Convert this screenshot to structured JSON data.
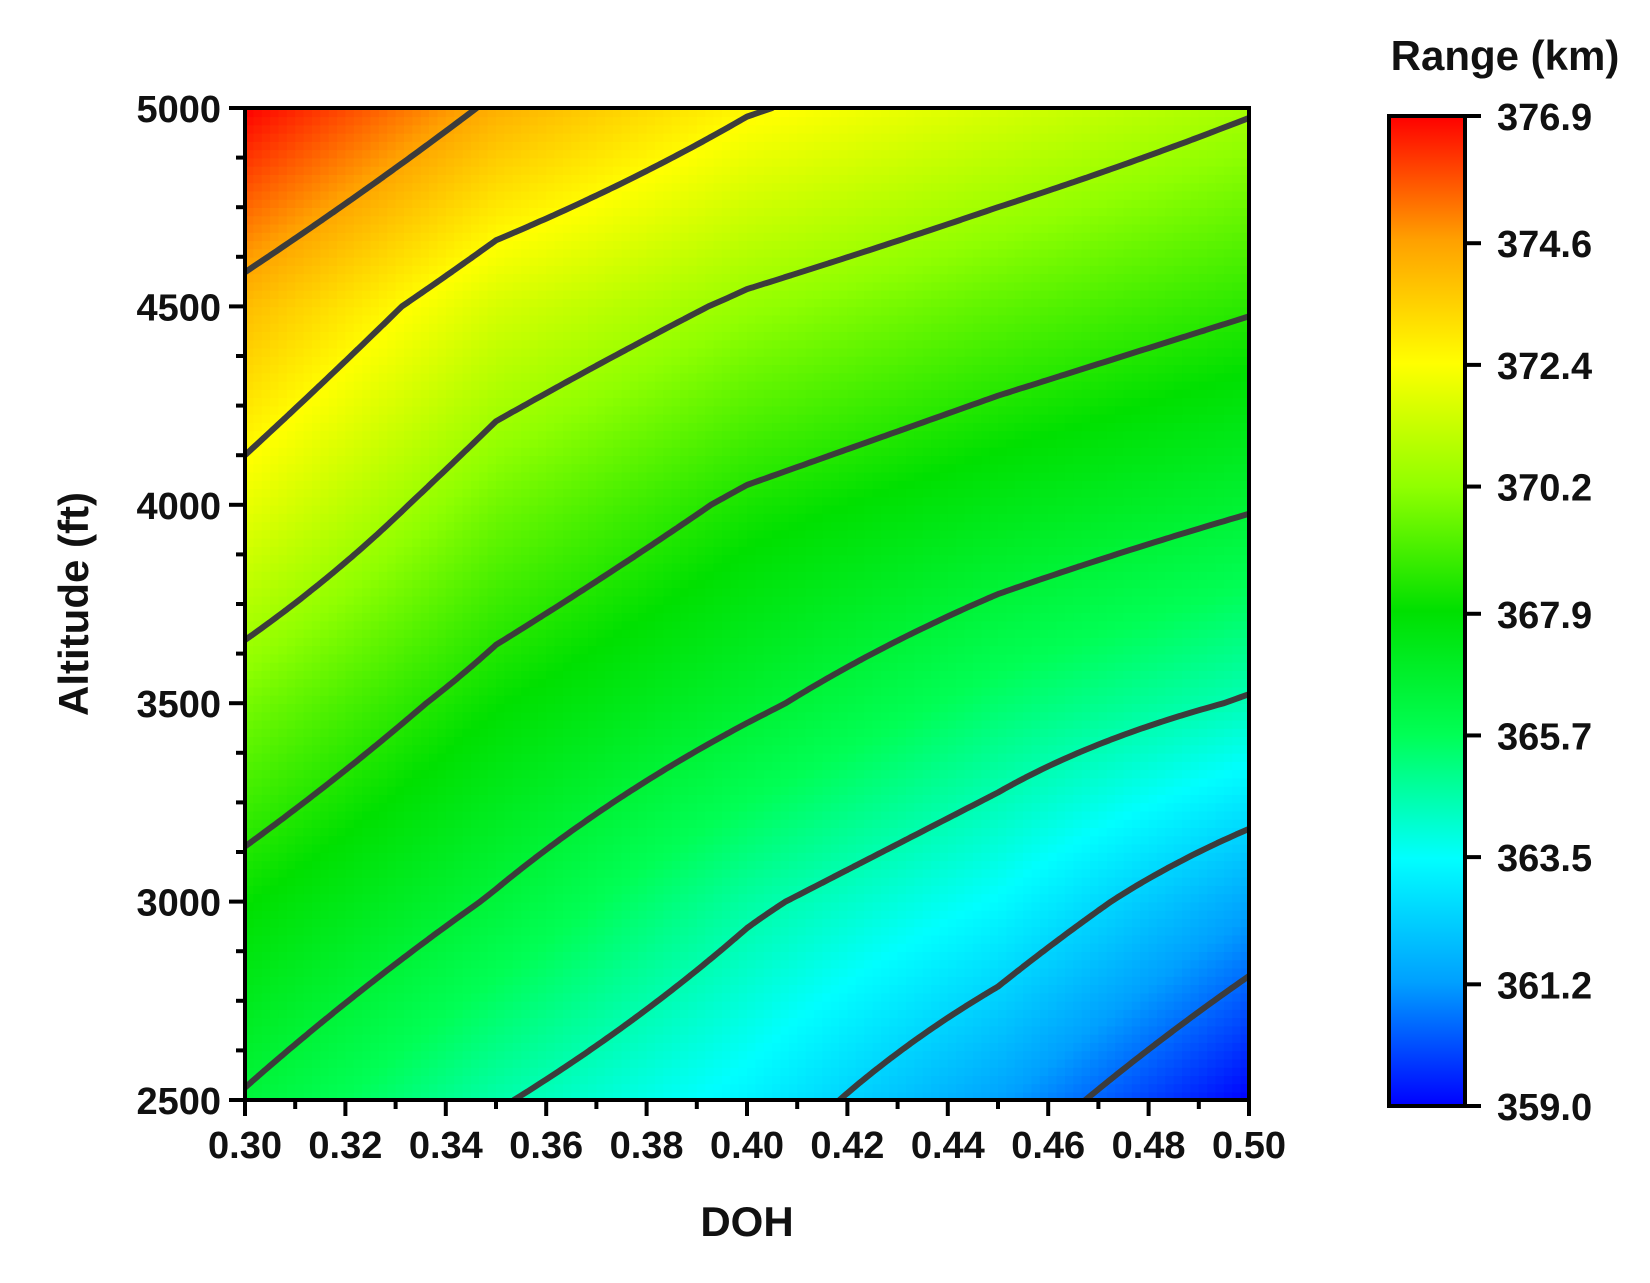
{
  "chart_data": {
    "type": "heatmap",
    "subtype": "filled-contour",
    "title": "",
    "xlabel": "DOH",
    "ylabel": "Altitude (ft)",
    "xlim": [
      0.3,
      0.5
    ],
    "ylim": [
      2500,
      5000
    ],
    "x_ticks": [
      "0.30",
      "0.32",
      "0.34",
      "0.36",
      "0.38",
      "0.40",
      "0.42",
      "0.44",
      "0.46",
      "0.48",
      "0.50"
    ],
    "y_ticks": [
      "2500",
      "3000",
      "3500",
      "4000",
      "4500",
      "5000"
    ],
    "grid": false,
    "x": [
      0.3,
      0.35,
      0.4,
      0.45,
      0.5
    ],
    "y": [
      2500,
      3000,
      3500,
      4000,
      4500,
      5000
    ],
    "z": [
      [
        366.4,
        364.6,
        363.2,
        361.3,
        359.0
      ],
      [
        368.0,
        366.4,
        364.7,
        363.4,
        361.4
      ],
      [
        369.8,
        368.0,
        366.7,
        365.4,
        364.4
      ],
      [
        372.0,
        369.7,
        368.3,
        367.4,
        366.6
      ],
      [
        374.0,
        371.6,
        370.3,
        369.4,
        368.6
      ],
      [
        376.9,
        374.3,
        372.6,
        371.6,
        370.6
      ]
    ],
    "contour_levels": [
      360.5,
      362.5,
      364.5,
      366.5,
      368.5,
      370.5,
      372.5,
      374.5
    ],
    "colorbar": {
      "title": "Range (km)",
      "min": 359.0,
      "max": 376.9,
      "ticks": [
        "376.9",
        "374.6",
        "372.4",
        "370.2",
        "367.9",
        "365.7",
        "363.5",
        "361.2",
        "359.0"
      ]
    },
    "colors": {
      "contour_line": "#3c3c3c",
      "frame": "#000000",
      "colormap": [
        "#0000ff",
        "#00a0ff",
        "#00ffff",
        "#00ff55",
        "#00e000",
        "#90ff00",
        "#ffff00",
        "#ffa000",
        "#ff0000"
      ]
    }
  }
}
